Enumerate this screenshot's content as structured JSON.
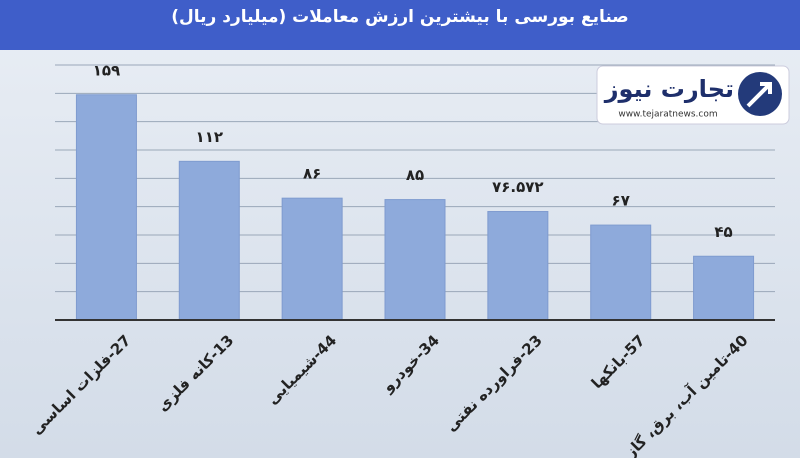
{
  "chart_data": {
    "type": "bar",
    "title": "صنایع بورسی با بیشترین ارزش معاملات  (میلیارد ریال)",
    "categories": [
      "27-فلزات اساسی",
      "13-کانه فلزی",
      "44-شیمیایی",
      "34-خودرو",
      "23-فراورده نفتی",
      "57-بانکها",
      "40-تامین آب، برق، گاز"
    ],
    "values": [
      159,
      112,
      86,
      85,
      76.572,
      67,
      45
    ],
    "value_labels": [
      "۱۵۹",
      "۱۱۲",
      "۸۶",
      "۸۵",
      "۷۶.۵۷۲",
      "۶۷",
      "۴۵"
    ],
    "color": "#8eaadb",
    "ylim": [
      0,
      180
    ],
    "yticks": [
      0,
      20,
      40,
      60,
      80,
      100,
      120,
      140,
      160,
      180
    ],
    "grid": true,
    "logo": {
      "name": "تجارت نیوز",
      "url": "www.tejaratnews.com"
    }
  }
}
